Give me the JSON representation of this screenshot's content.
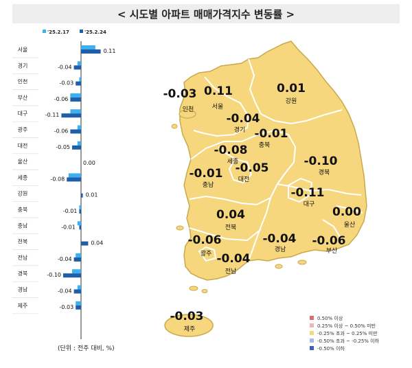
{
  "title": "< 시도별 아파트 매매가격지수 변동률 >",
  "unit_note": "(단위 : 전주 대비, %)",
  "colors": {
    "prev": "#3fb0ef",
    "curr": "#1f5ea8",
    "map_fill": "#f7d77e",
    "map_border": "#c9a94c",
    "region_line": "#ffffff"
  },
  "chart_data": [
    {
      "type": "bar",
      "orientation": "horizontal",
      "categories": [
        "서울",
        "경기",
        "인천",
        "부산",
        "대구",
        "광주",
        "대전",
        "울산",
        "세종",
        "강원",
        "충북",
        "충남",
        "전북",
        "전남",
        "경북",
        "경남",
        "제주"
      ],
      "series": [
        {
          "name": "'25.2.17",
          "values": [
            0.08,
            -0.02,
            -0.01,
            -0.06,
            -0.06,
            -0.02,
            -0.02,
            0.0,
            -0.07,
            0.0,
            -0.01,
            -0.02,
            0.0,
            -0.03,
            -0.05,
            -0.02,
            -0.03
          ]
        },
        {
          "name": "'25.2.24",
          "values": [
            0.11,
            -0.04,
            -0.03,
            -0.06,
            -0.11,
            -0.06,
            -0.05,
            0.0,
            -0.08,
            0.01,
            -0.01,
            -0.01,
            0.04,
            -0.04,
            -0.1,
            -0.04,
            -0.03
          ]
        }
      ],
      "data_labels": [
        "0.11",
        "-0.04",
        "-0.03",
        "-0.06",
        "-0.11",
        "-0.06",
        "-0.05",
        "0.00",
        "-0.08",
        "0.01",
        "-0.01",
        "-0.01",
        "0.04",
        "-0.04",
        "-0.10",
        "-0.04",
        "-0.03"
      ],
      "legend": "top-left",
      "grid": false
    },
    {
      "type": "choropleth-map",
      "regions": [
        {
          "name": "인천",
          "value": "-0.03"
        },
        {
          "name": "서울",
          "value": "0.11"
        },
        {
          "name": "강원",
          "value": "0.01"
        },
        {
          "name": "경기",
          "value": "-0.04"
        },
        {
          "name": "충북",
          "value": "-0.01"
        },
        {
          "name": "세종",
          "value": "-0.08"
        },
        {
          "name": "대전",
          "value": "-0.05"
        },
        {
          "name": "충남",
          "value": "-0.01"
        },
        {
          "name": "경북",
          "value": "-0.10"
        },
        {
          "name": "대구",
          "value": "-0.11"
        },
        {
          "name": "울산",
          "value": "0.00"
        },
        {
          "name": "전북",
          "value": "0.04"
        },
        {
          "name": "광주",
          "value": "-0.06"
        },
        {
          "name": "경남",
          "value": "-0.04"
        },
        {
          "name": "부산",
          "value": "-0.06"
        },
        {
          "name": "전남",
          "value": "-0.04"
        },
        {
          "name": "제주",
          "value": "-0.03"
        }
      ],
      "legend_items": [
        {
          "label": "0.50% 이상",
          "color": "#e06b6b"
        },
        {
          "label": "0.25% 이상 ~ 0.50% 미만",
          "color": "#f2b5b5"
        },
        {
          "label": "-0.25% 초과 ~ 0.25% 미만",
          "color": "#f7d77e"
        },
        {
          "label": "-0.50% 초과 ~ -0.25% 이하",
          "color": "#aabce6"
        },
        {
          "label": "-0.50% 이하",
          "color": "#3f5fb5"
        }
      ],
      "legend_position": "bottom-right"
    }
  ]
}
